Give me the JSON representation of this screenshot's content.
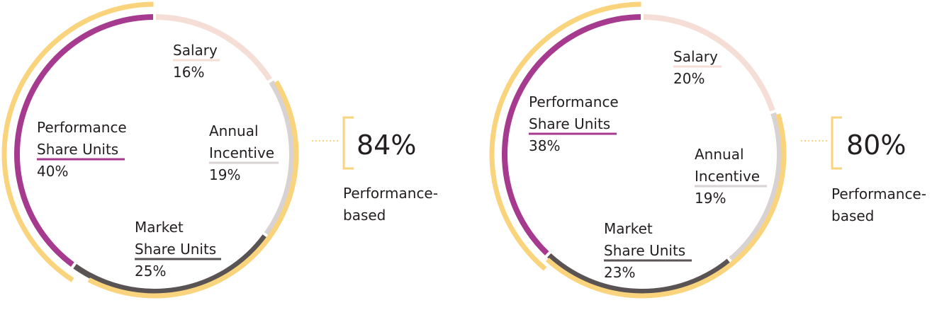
{
  "colors": {
    "outer_ring": "#f9d47c",
    "bracket": "#f9d47c",
    "dotted": "#f9d47c"
  },
  "chart_data": [
    {
      "type": "pie",
      "style": "donut-ring",
      "categories": [
        "Salary",
        "Annual Incentive",
        "Market Share Units",
        "Performance Share Units"
      ],
      "segments": [
        {
          "id": "salary",
          "lines": [
            "Salary"
          ],
          "value": 16,
          "value_text": "16%",
          "color": "#f5ded5"
        },
        {
          "id": "annual",
          "lines": [
            "Annual",
            "Incentive"
          ],
          "value": 19,
          "value_text": "19%",
          "color": "#d9d2d2"
        },
        {
          "id": "market",
          "lines": [
            "Market",
            "Share Units"
          ],
          "value": 25,
          "value_text": "25%",
          "color": "#5a5354"
        },
        {
          "id": "performance",
          "lines": [
            "Performance",
            "Share Units"
          ],
          "value": 40,
          "value_text": "40%",
          "color": "#a53a8e"
        }
      ],
      "performance_based": {
        "value": 84,
        "value_text": "84%",
        "label_lines": [
          "Performance-",
          "based"
        ],
        "includes": [
          "annual",
          "market",
          "performance"
        ]
      }
    },
    {
      "type": "pie",
      "style": "donut-ring",
      "categories": [
        "Salary",
        "Annual Incentive",
        "Market Share Units",
        "Performance Share Units"
      ],
      "segments": [
        {
          "id": "salary",
          "lines": [
            "Salary"
          ],
          "value": 20,
          "value_text": "20%",
          "color": "#f5ded5"
        },
        {
          "id": "annual",
          "lines": [
            "Annual",
            "Incentive"
          ],
          "value": 19,
          "value_text": "19%",
          "color": "#d9d2d2"
        },
        {
          "id": "market",
          "lines": [
            "Market",
            "Share Units"
          ],
          "value": 23,
          "value_text": "23%",
          "color": "#5a5354"
        },
        {
          "id": "performance",
          "lines": [
            "Performance",
            "Share Units"
          ],
          "value": 38,
          "value_text": "38%",
          "color": "#a53a8e"
        }
      ],
      "performance_based": {
        "value": 80,
        "value_text": "80%",
        "label_lines": [
          "Performance-",
          "based"
        ],
        "includes": [
          "annual",
          "market",
          "performance"
        ]
      }
    }
  ]
}
